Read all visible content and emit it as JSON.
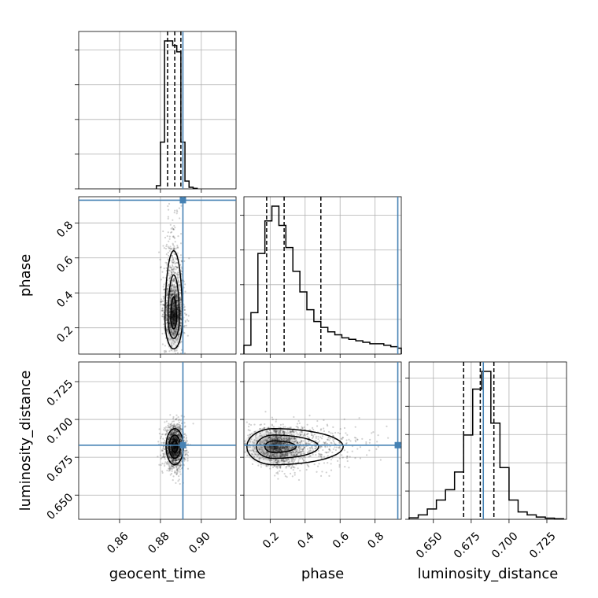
{
  "colors": {
    "truth": "#4682b4",
    "line": "#000000",
    "grid": "#b0b0b0"
  },
  "chart_data": {
    "type": "corner",
    "parameters": [
      "geocent_time",
      "phase",
      "luminosity_distance"
    ],
    "ranges": {
      "geocent_time": [
        0.84,
        0.917
      ],
      "phase": [
        0.05,
        0.95
      ],
      "luminosity_distance": [
        0.634,
        0.738
      ]
    },
    "ticks": {
      "geocent_time": [
        "0.86",
        "0.88",
        "0.90"
      ],
      "phase": [
        "0.2",
        "0.4",
        "0.6",
        "0.8"
      ],
      "luminosity_distance": [
        "0.650",
        "0.675",
        "0.700",
        "0.725"
      ]
    },
    "truths": {
      "geocent_time": 0.891,
      "phase": 0.93,
      "luminosity_distance": 0.683
    },
    "quantiles": {
      "geocent_time": [
        0.8835,
        0.887,
        0.89
      ],
      "phase": [
        0.18,
        0.28,
        0.49
      ],
      "luminosity_distance": [
        0.67,
        0.681,
        0.69
      ]
    },
    "histograms": {
      "geocent_time": {
        "edges": [
          0.878,
          0.88,
          0.882,
          0.884,
          0.886,
          0.888,
          0.89,
          0.892,
          0.894,
          0.896,
          0.898
        ],
        "counts": [
          0.02,
          0.3,
          0.95,
          0.95,
          0.92,
          0.88,
          0.3,
          0.05,
          0.01,
          0.003
        ]
      },
      "phase": {
        "edges": [
          0.05,
          0.09,
          0.13,
          0.17,
          0.21,
          0.25,
          0.29,
          0.33,
          0.37,
          0.41,
          0.45,
          0.49,
          0.53,
          0.57,
          0.61,
          0.65,
          0.69,
          0.73,
          0.77,
          0.81,
          0.85,
          0.89,
          0.93,
          0.95
        ],
        "counts": [
          0.06,
          0.28,
          0.68,
          0.9,
          1.0,
          0.87,
          0.72,
          0.56,
          0.42,
          0.3,
          0.22,
          0.18,
          0.15,
          0.13,
          0.11,
          0.1,
          0.09,
          0.08,
          0.07,
          0.07,
          0.06,
          0.05,
          0.04
        ]
      },
      "luminosity_distance": {
        "edges": [
          0.634,
          0.64,
          0.646,
          0.652,
          0.658,
          0.664,
          0.67,
          0.676,
          0.682,
          0.688,
          0.694,
          0.7,
          0.706,
          0.712,
          0.718,
          0.724,
          0.73,
          0.736
        ],
        "counts": [
          0.01,
          0.03,
          0.07,
          0.13,
          0.2,
          0.32,
          0.57,
          0.88,
          1.0,
          0.65,
          0.35,
          0.13,
          0.05,
          0.03,
          0.015,
          0.008,
          0.004
        ]
      }
    },
    "contours_2d": [
      {
        "x": "geocent_time",
        "y": "phase",
        "center": [
          0.8865,
          0.25
        ],
        "spread": [
          0.0025,
          0.1
        ]
      },
      {
        "x": "geocent_time",
        "y": "luminosity_distance",
        "center": [
          0.887,
          0.682
        ],
        "spread": [
          0.0025,
          0.007
        ]
      },
      {
        "x": "phase",
        "y": "luminosity_distance",
        "center": [
          0.22,
          0.682
        ],
        "spread": [
          0.09,
          0.007
        ]
      }
    ]
  }
}
